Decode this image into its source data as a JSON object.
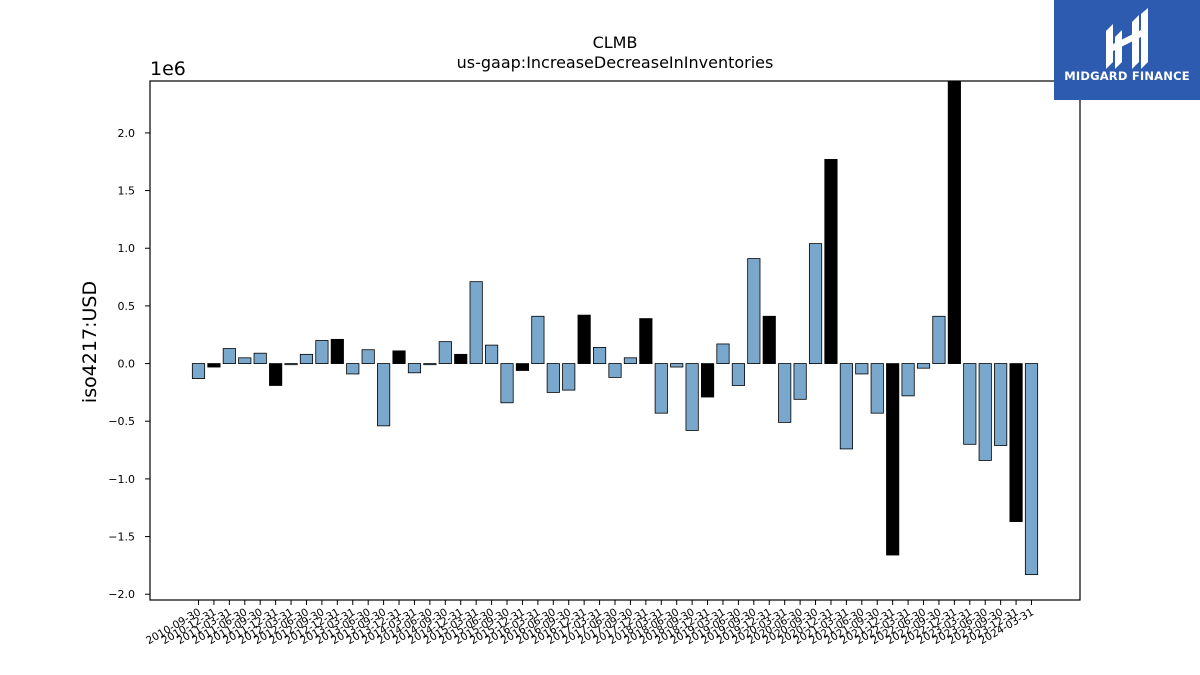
{
  "brand": {
    "name": "MIDGARD FINANCE",
    "color": "#2d5bb0"
  },
  "chart_data": {
    "type": "bar",
    "title": "CLMB",
    "subtitle": "us-gaap:IncreaseDecreaseInInventories",
    "ylabel": "iso4217:USD",
    "xlabel": "",
    "y_multiplier_label": "1e6",
    "ylim": [
      -2050000,
      2450000
    ],
    "yticks": [
      -2.0,
      -1.5,
      -1.0,
      -0.5,
      0.0,
      0.5,
      1.0,
      1.5,
      2.0
    ],
    "colors": {
      "quarterly": "#7aa8cc",
      "q4_highlight": "#000000"
    },
    "categories": [
      "2010-09-30",
      "2010-12-31",
      "2011-03-31",
      "2011-06-30",
      "2011-09-30",
      "2011-12-31",
      "2012-03-31",
      "2012-06-30",
      "2012-09-30",
      "2012-12-31",
      "2013-03-31",
      "2013-06-30",
      "2013-09-30",
      "2013-12-31",
      "2014-03-31",
      "2014-06-30",
      "2014-09-30",
      "2014-12-31",
      "2015-03-31",
      "2015-06-30",
      "2015-09-30",
      "2015-12-31",
      "2016-03-31",
      "2016-06-30",
      "2016-09-30",
      "2016-12-31",
      "2017-03-31",
      "2017-06-30",
      "2017-09-30",
      "2017-12-31",
      "2018-03-31",
      "2018-06-30",
      "2018-09-30",
      "2018-12-31",
      "2019-03-31",
      "2019-06-30",
      "2019-09-30",
      "2019-12-31",
      "2020-03-31",
      "2020-06-30",
      "2020-09-30",
      "2020-12-31",
      "2021-03-31",
      "2021-06-30",
      "2021-09-30",
      "2021-12-31",
      "2022-03-31",
      "2022-06-30",
      "2022-09-30",
      "2022-12-31",
      "2023-03-31",
      "2023-06-30",
      "2023-09-30",
      "2023-12-31",
      "2024-03-31"
    ],
    "values": [
      -130000,
      -30000,
      130000,
      50000,
      90000,
      -190000,
      -10000,
      80000,
      200000,
      210000,
      -90000,
      120000,
      -540000,
      110000,
      -80000,
      -10000,
      190000,
      80000,
      710000,
      160000,
      -340000,
      -60000,
      410000,
      -250000,
      -230000,
      420000,
      140000,
      -120000,
      50000,
      390000,
      -430000,
      -30000,
      -580000,
      -290000,
      170000,
      -190000,
      910000,
      410000,
      -510000,
      -310000,
      1040000,
      1770000,
      -740000,
      -90000,
      -430000,
      -1660000,
      -280000,
      -40000,
      410000,
      2450000,
      -700000,
      -840000,
      -710000,
      -1370000,
      -1830000
    ],
    "highlight": [
      false,
      true,
      false,
      false,
      false,
      true,
      false,
      false,
      false,
      true,
      false,
      false,
      false,
      true,
      false,
      false,
      false,
      true,
      false,
      false,
      false,
      true,
      false,
      false,
      false,
      true,
      false,
      false,
      false,
      true,
      false,
      false,
      false,
      true,
      false,
      false,
      false,
      true,
      false,
      false,
      false,
      true,
      false,
      false,
      false,
      true,
      false,
      false,
      false,
      true,
      false,
      false,
      false,
      true,
      false
    ]
  }
}
